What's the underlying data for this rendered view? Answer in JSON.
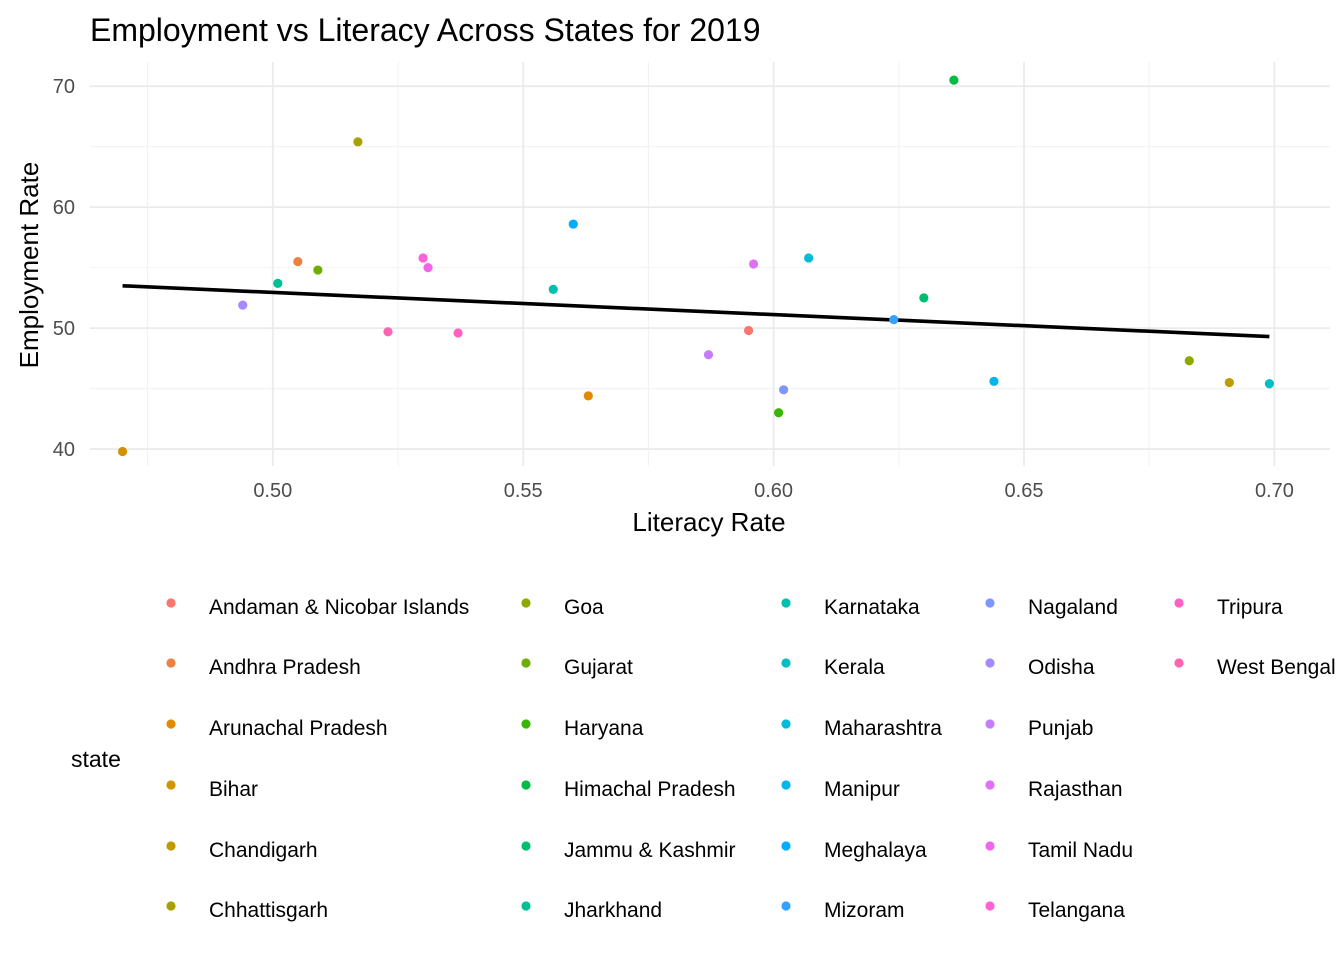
{
  "chart_data": {
    "type": "scatter",
    "title": "Employment vs Literacy Across States for 2019",
    "xlabel": "Literacy Rate",
    "ylabel": "Employment Rate",
    "xlim": [
      0.4635,
      0.7111
    ],
    "ylim": [
      38.6,
      72.0
    ],
    "x_ticks": [
      0.5,
      0.55,
      0.6,
      0.65,
      0.7
    ],
    "x_tick_labels": [
      "0.50",
      "0.55",
      "0.60",
      "0.65",
      "0.70"
    ],
    "y_ticks": [
      40,
      50,
      60,
      70
    ],
    "y_tick_labels": [
      "40",
      "50",
      "60",
      "70"
    ],
    "grid": true,
    "legend_position": "bottom",
    "legend_title": "state",
    "series": [
      {
        "name": "Andaman & Nicobar Islands",
        "color": "#F8766D",
        "x": 0.595,
        "y": 49.8
      },
      {
        "name": "Andhra Pradesh",
        "color": "#EE8042",
        "x": 0.505,
        "y": 55.5
      },
      {
        "name": "Arunachal Pradesh",
        "color": "#E28A00",
        "x": 0.563,
        "y": 44.4
      },
      {
        "name": "Bihar",
        "color": "#D39200",
        "x": 0.47,
        "y": 39.8
      },
      {
        "name": "Chandigarh",
        "color": "#BF9A00",
        "x": 0.691,
        "y": 45.5
      },
      {
        "name": "Chhattisgarh",
        "color": "#A8A100",
        "x": 0.517,
        "y": 65.4
      },
      {
        "name": "Goa",
        "color": "#8FA800",
        "x": 0.683,
        "y": 47.3
      },
      {
        "name": "Gujarat",
        "color": "#6EAE00",
        "x": 0.509,
        "y": 54.8
      },
      {
        "name": "Haryana",
        "color": "#39B600",
        "x": 0.601,
        "y": 43.0
      },
      {
        "name": "Himachal Pradesh",
        "color": "#00BB45",
        "x": 0.636,
        "y": 70.5
      },
      {
        "name": "Jammu & Kashmir",
        "color": "#00BE70",
        "x": 0.63,
        "y": 52.5
      },
      {
        "name": "Jharkhand",
        "color": "#00BF93",
        "x": 0.501,
        "y": 53.7
      },
      {
        "name": "Karnataka",
        "color": "#00C0AF",
        "x": 0.556,
        "y": 53.2
      },
      {
        "name": "Kerala",
        "color": "#00BFC4",
        "x": 0.699,
        "y": 45.4
      },
      {
        "name": "Maharashtra",
        "color": "#00BCD8",
        "x": 0.607,
        "y": 55.8
      },
      {
        "name": "Manipur",
        "color": "#00B6EB",
        "x": 0.644,
        "y": 45.6
      },
      {
        "name": "Meghalaya",
        "color": "#00ACFC",
        "x": 0.56,
        "y": 58.6
      },
      {
        "name": "Mizoram",
        "color": "#35A2FF",
        "x": 0.624,
        "y": 50.7
      },
      {
        "name": "Nagaland",
        "color": "#7F96FF",
        "x": 0.602,
        "y": 44.9
      },
      {
        "name": "Odisha",
        "color": "#A58AFF",
        "x": 0.494,
        "y": 51.9
      },
      {
        "name": "Punjab",
        "color": "#C77CFF",
        "x": 0.587,
        "y": 47.8
      },
      {
        "name": "Rajasthan",
        "color": "#DF70F8",
        "x": 0.596,
        "y": 55.3
      },
      {
        "name": "Tamil Nadu",
        "color": "#F066EA",
        "x": 0.531,
        "y": 55.0
      },
      {
        "name": "Telangana",
        "color": "#FC61D5",
        "x": 0.53,
        "y": 55.8
      },
      {
        "name": "Tripura",
        "color": "#FF61C3",
        "x": 0.537,
        "y": 49.6
      },
      {
        "name": "West Bengal",
        "color": "#FF64B0",
        "x": 0.523,
        "y": 49.7
      }
    ],
    "trend_line": {
      "type": "linear",
      "color": "#000000",
      "x": [
        0.47,
        0.699
      ],
      "y": [
        53.5,
        49.3
      ]
    }
  }
}
